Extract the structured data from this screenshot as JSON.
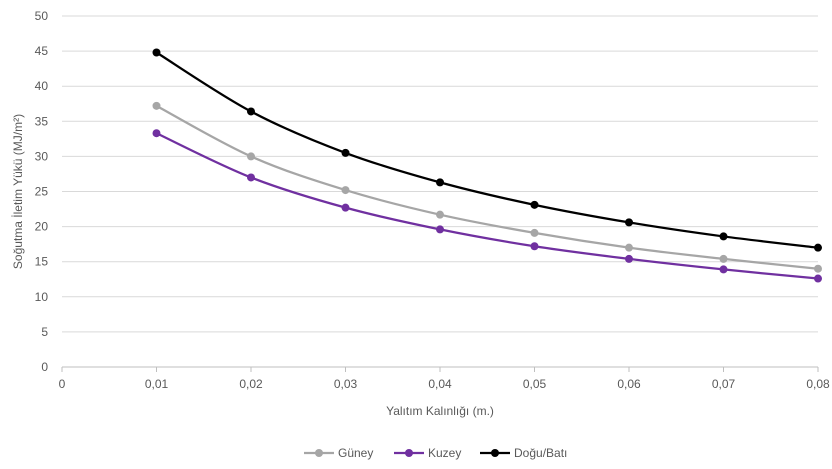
{
  "chart_data": {
    "type": "line",
    "title": "",
    "xlabel": "Yalıtım Kalınlığı (m.)",
    "ylabel": "Soğutma İletim Yükü (MJ/m²)",
    "x": [
      0.01,
      0.02,
      0.03,
      0.04,
      0.05,
      0.06,
      0.07,
      0.08
    ],
    "xlim": [
      0,
      0.08
    ],
    "ylim": [
      0,
      50
    ],
    "x_ticks": [
      "0",
      "0,01",
      "0,02",
      "0,03",
      "0,04",
      "0,05",
      "0,06",
      "0,07",
      "0,08"
    ],
    "x_tick_values": [
      0,
      0.01,
      0.02,
      0.03,
      0.04,
      0.05,
      0.06,
      0.07,
      0.08
    ],
    "y_ticks": [
      "0",
      "5",
      "10",
      "15",
      "20",
      "25",
      "30",
      "35",
      "40",
      "45",
      "50"
    ],
    "y_tick_values": [
      0,
      5,
      10,
      15,
      20,
      25,
      30,
      35,
      40,
      45,
      50
    ],
    "grid": "horizontal",
    "legend_position": "bottom",
    "series": [
      {
        "name": "Güney",
        "color": "#a6a6a6",
        "values": [
          37.2,
          30.0,
          25.2,
          21.7,
          19.1,
          17.0,
          15.4,
          14.0
        ]
      },
      {
        "name": "Kuzey",
        "color": "#7030a0",
        "values": [
          33.3,
          27.0,
          22.7,
          19.6,
          17.2,
          15.4,
          13.9,
          12.6
        ]
      },
      {
        "name": "Doğu/Batı",
        "color": "#000000",
        "values": [
          44.8,
          36.4,
          30.5,
          26.3,
          23.1,
          20.6,
          18.6,
          17.0
        ]
      }
    ]
  }
}
